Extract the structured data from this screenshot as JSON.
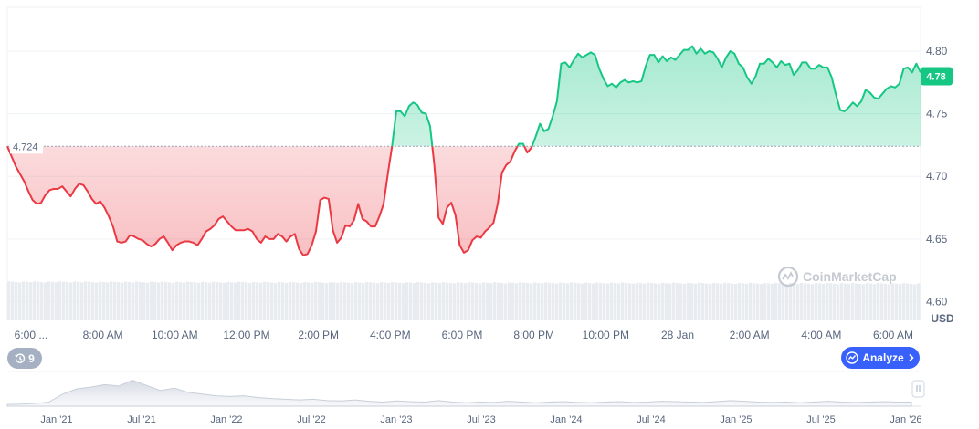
{
  "chart_data": {
    "type": "area",
    "x_ticks": [
      "6:00 ...",
      "8:00 AM",
      "10:00 AM",
      "12:00 PM",
      "2:00 PM",
      "4:00 PM",
      "6:00 PM",
      "8:00 PM",
      "10:00 PM",
      "28 Jan",
      "2:00 AM",
      "4:00 AM",
      "6:00 AM"
    ],
    "y_ticks": [
      "4.80",
      "4.75",
      "4.70",
      "4.65",
      "4.60"
    ],
    "ylim": [
      4.585,
      4.835
    ],
    "unit": "USD",
    "reference_value": 4.724,
    "reference_label": "4.724",
    "current_value": 4.78,
    "current_label": "4.78",
    "colors": {
      "up": "#16c784",
      "down": "#ea3943",
      "reference": "#9aa4b5",
      "volume": "#e8ebef"
    },
    "series": [
      {
        "values": [
          4.724,
          4.716,
          4.708,
          4.702,
          4.696,
          4.688,
          4.681,
          4.678,
          4.679,
          4.685,
          4.689,
          4.69,
          4.69,
          4.692,
          4.688,
          4.684,
          4.69,
          4.694,
          4.693,
          4.688,
          4.682,
          4.678,
          4.68,
          4.675,
          4.668,
          4.66,
          4.648,
          4.647,
          4.648,
          4.653,
          4.652,
          4.65,
          4.649,
          4.646,
          4.644,
          4.646,
          4.65,
          4.652,
          4.647,
          4.641,
          4.645,
          4.647,
          4.648,
          4.648,
          4.647,
          4.645,
          4.65,
          4.656,
          4.658,
          4.661,
          4.666,
          4.668,
          4.664,
          4.66,
          4.657,
          4.657,
          4.657,
          4.658,
          4.656,
          4.65,
          4.647,
          4.652,
          4.65,
          4.65,
          4.654,
          4.652,
          4.648,
          4.652,
          4.654,
          4.642,
          4.637,
          4.638,
          4.645,
          4.656,
          4.681,
          4.683,
          4.682,
          4.657,
          4.647,
          4.651,
          4.661,
          4.66,
          4.665,
          4.678,
          4.666,
          4.664,
          4.66,
          4.66,
          4.668,
          4.678,
          4.702,
          4.724,
          4.752,
          4.752,
          4.748,
          4.756,
          4.759,
          4.757,
          4.751,
          4.75,
          4.74,
          4.709,
          4.667,
          4.662,
          4.675,
          4.679,
          4.669,
          4.645,
          4.639,
          4.641,
          4.649,
          4.652,
          4.651,
          4.656,
          4.659,
          4.663,
          4.678,
          4.703,
          4.709,
          4.712,
          4.72,
          4.726,
          4.726,
          4.719,
          4.723,
          4.732,
          4.742,
          4.736,
          4.738,
          4.748,
          4.76,
          4.79,
          4.791,
          4.787,
          4.793,
          4.798,
          4.795,
          4.797,
          4.799,
          4.797,
          4.786,
          4.778,
          4.772,
          4.774,
          4.771,
          4.775,
          4.777,
          4.775,
          4.776,
          4.775,
          4.776,
          4.788,
          4.797,
          4.797,
          4.791,
          4.796,
          4.792,
          4.795,
          4.793,
          4.797,
          4.801,
          4.801,
          4.804,
          4.798,
          4.802,
          4.798,
          4.8,
          4.799,
          4.794,
          4.787,
          4.795,
          4.8,
          4.798,
          4.79,
          4.787,
          4.779,
          4.774,
          4.78,
          4.79,
          4.79,
          4.794,
          4.791,
          4.787,
          4.792,
          4.789,
          4.79,
          4.781,
          4.785,
          4.791,
          4.791,
          4.786,
          4.786,
          4.789,
          4.787,
          4.787,
          4.779,
          4.765,
          4.753,
          4.752,
          4.755,
          4.759,
          4.756,
          4.76,
          4.769,
          4.767,
          4.763,
          4.762,
          4.766,
          4.77,
          4.772,
          4.771,
          4.774,
          4.786,
          4.787,
          4.783,
          4.79,
          4.783
        ]
      }
    ],
    "volume": [
      0.84,
      0.83,
      0.82,
      0.81,
      0.8
    ],
    "navigator": {
      "ticks": [
        "Jan '21",
        "Jul '21",
        "Jan '22",
        "Jul '22",
        "Jan '23",
        "Jul '23",
        "Jan '24",
        "Jul '24",
        "Jan '25",
        "Jul '25",
        "Jan '26"
      ],
      "profile": [
        0.05,
        0.06,
        0.08,
        0.12,
        0.35,
        0.5,
        0.55,
        0.62,
        0.58,
        0.75,
        0.6,
        0.45,
        0.52,
        0.4,
        0.35,
        0.3,
        0.28,
        0.3,
        0.25,
        0.22,
        0.2,
        0.18,
        0.2,
        0.16,
        0.15,
        0.18,
        0.14,
        0.12,
        0.15,
        0.13,
        0.12,
        0.16,
        0.12,
        0.1,
        0.12,
        0.11,
        0.14,
        0.12,
        0.1,
        0.12,
        0.13,
        0.11,
        0.1,
        0.12,
        0.13,
        0.11,
        0.12,
        0.14,
        0.13,
        0.12,
        0.11,
        0.13,
        0.16,
        0.14,
        0.12,
        0.11,
        0.12,
        0.1,
        0.12,
        0.14,
        0.12,
        0.11,
        0.12,
        0.13,
        0.12,
        0.12
      ]
    }
  },
  "watermark": "CoinMarketCap",
  "badge": {
    "count": "9"
  },
  "analyze_button": {
    "label": "Analyze"
  },
  "icons": {
    "history": "clock-history-icon",
    "analyze": "analyze-icon",
    "chevron": "chevron-right-icon",
    "handle": "range-handle-icon"
  }
}
